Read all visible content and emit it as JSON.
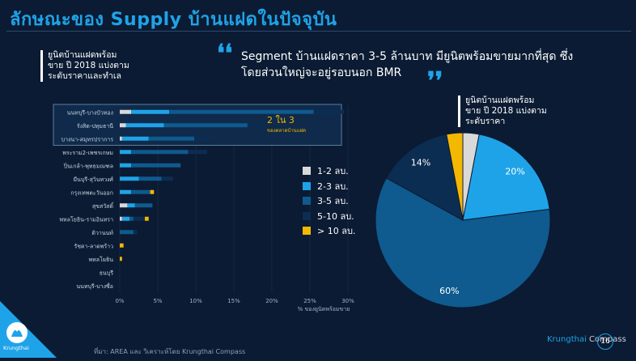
{
  "title": "ลักษณะของ Supply บ้านแฝดในปัจจุบัน",
  "left_note": [
    "ยูนิตบ้านแฝดพร้อม",
    "ขาย ปี 2018 แบ่งตาม",
    "ระดับราคาและทำเล"
  ],
  "quote": "Segment บ้านแฝดราคา 3-5 ล้านบาท มียูนิตพร้อมขายมากที่สุด ซึ่งโดยส่วนใหญ่จะอยู่รอบนอก BMR",
  "right_note": [
    "ยูนิตบ้านแฝดพร้อม",
    "ขาย ปี 2018 แบ่งตาม",
    "ระดับราคา"
  ],
  "highlight": {
    "big": "2 ใน 3",
    "small": "ของตลาดบ้านแฝด"
  },
  "colors": {
    "bg": "#0b1b33",
    "c12": "#d9d9d9",
    "c23": "#1fa3e8",
    "c35": "#0f5a8e",
    "c510": "#0c2d52",
    "c10p": "#f5b800",
    "accent": "#1fa3e8",
    "highlight_text": "#f5b800"
  },
  "chart_data": [
    {
      "type": "bar",
      "orientation": "horizontal",
      "stacked": true,
      "categories": [
        "นนทบุรี-บางบัวทอง",
        "รังสิต-ปทุมธานี",
        "บางนา-สมุทรปราการ",
        "พระราม2-เพชรเกษม",
        "ปิ่นเกล้า-พุทธมณฑล",
        "มีนบุรี-สุวินทวงศ์",
        "กรุงเทพตะวันออก",
        "สุขสวัสดิ์",
        "พหลโยธิน-รามอินทรา",
        "ติวานนท์",
        "รัชดา-ลาดพร้าว",
        "พหลโยธิน",
        "ธนบุรี",
        "นนทบุรี-บางซื่อ"
      ],
      "series": [
        {
          "name": "1-2 ลบ.",
          "values": [
            1.5,
            0.8,
            0.3,
            0,
            0,
            0,
            0,
            1.0,
            0.3,
            0,
            0,
            0,
            0,
            0
          ]
        },
        {
          "name": "2-3 ลบ.",
          "values": [
            5.0,
            5.0,
            3.5,
            1.5,
            1.5,
            2.5,
            1.5,
            1.0,
            1.0,
            0,
            0,
            0,
            0,
            0
          ]
        },
        {
          "name": "3-5 ลบ.",
          "values": [
            19.0,
            11.0,
            6.0,
            7.5,
            6.5,
            3.0,
            2.5,
            2.3,
            0.5,
            1.8,
            0,
            0,
            0,
            0
          ]
        },
        {
          "name": "5-10 ลบ.",
          "values": [
            4.0,
            2.0,
            2.5,
            2.5,
            0,
            1.5,
            0,
            0,
            1.5,
            0.5,
            0,
            0,
            0,
            0
          ]
        },
        {
          "name": "> 10 ลบ.",
          "values": [
            0,
            0,
            0,
            0,
            0,
            0,
            0.5,
            0,
            0.5,
            0,
            0.5,
            0.3,
            0,
            0
          ]
        }
      ],
      "xlabel": "% ของยูนิตพร้อมขาย",
      "xticks": [
        "0%",
        "5%",
        "10%",
        "15%",
        "20%",
        "25%",
        "30%"
      ],
      "xlim": [
        0,
        30
      ]
    },
    {
      "type": "pie",
      "labels": [
        "1-2 ลบ.",
        "2-3 ลบ.",
        "3-5 ลบ.",
        "5-10 ลบ.",
        "> 10 ลบ."
      ],
      "values": [
        3,
        20,
        60,
        14,
        3
      ],
      "value_labels": [
        "",
        "20%",
        "60%",
        "14%",
        ""
      ]
    }
  ],
  "legend": [
    {
      "label": "1-2 ลบ.",
      "color": "#d9d9d9"
    },
    {
      "label": "2-3 ลบ.",
      "color": "#1fa3e8"
    },
    {
      "label": "3-5 ลบ.",
      "color": "#0f5a8e"
    },
    {
      "label": "5-10 ลบ.",
      "color": "#0c2d52"
    },
    {
      "label": "> 10 ลบ.",
      "color": "#f5b800"
    }
  ],
  "footer": {
    "source": "ที่มา: AREA และ วิเคราะห์โดย Krungthai Compass",
    "brand_a": "Krungthai",
    "brand_b": " Compass",
    "page": "16",
    "logo_text": "Krungthai"
  }
}
